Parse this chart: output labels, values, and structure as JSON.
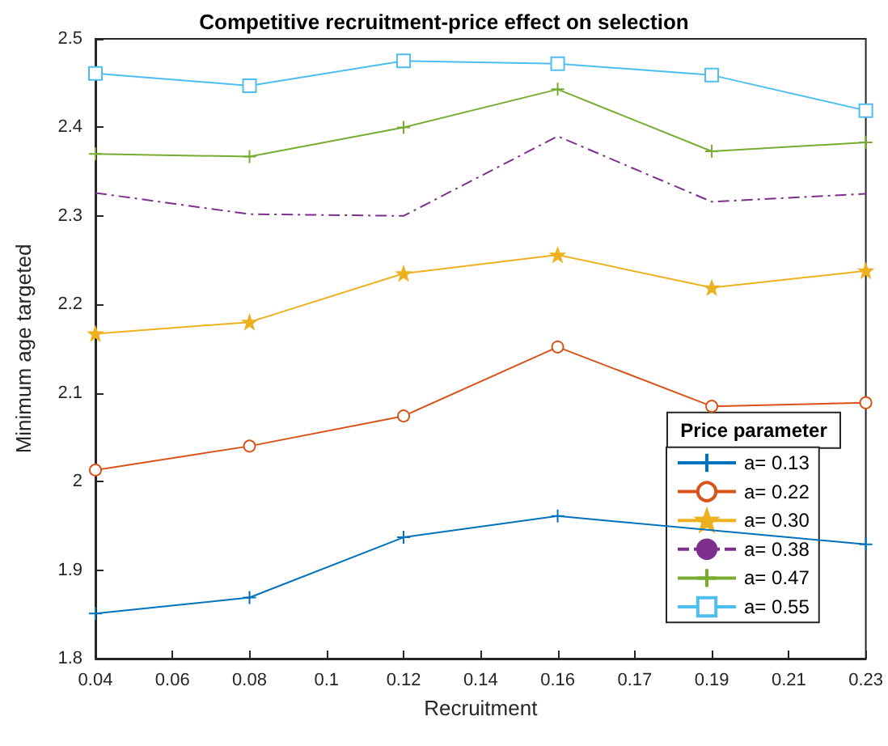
{
  "chart_data": {
    "type": "line",
    "title": "Competitive recruitment-price effect on selection",
    "xlabel": "Recruitment",
    "ylabel": "Minimum age targeted",
    "legend_title": "Price parameter",
    "legend": "bottom right",
    "grid": false,
    "categories": [
      "0.04",
      "0.06",
      "0.08",
      "0.1",
      "0.12",
      "0.14",
      "0.16",
      "0.17",
      "0.19",
      "0.21",
      "0.23"
    ],
    "ylim": [
      1.8,
      2.5
    ],
    "yticks": [
      1.8,
      1.9,
      2,
      2.1,
      2.2,
      2.3,
      2.4,
      2.5
    ],
    "series": [
      {
        "name": "a= 0.13",
        "color": "#0072bd",
        "marker": "cross",
        "line_style": "solid",
        "values": [
          1.851,
          null,
          1.869,
          null,
          1.937,
          null,
          1.961,
          null,
          null,
          null,
          1.929
        ]
      },
      {
        "name": "a= 0.22",
        "color": "#d95319",
        "marker": "circle",
        "line_style": "solid",
        "values": [
          2.013,
          null,
          2.04,
          null,
          2.074,
          null,
          2.152,
          null,
          2.085,
          null,
          2.089
        ]
      },
      {
        "name": "a= 0.30",
        "color": "#edb120",
        "marker": "star",
        "line_style": "solid",
        "values": [
          2.167,
          null,
          2.18,
          null,
          2.235,
          null,
          2.256,
          null,
          2.219,
          null,
          2.238
        ]
      },
      {
        "name": "a= 0.38",
        "color": "#7e2f8e",
        "marker": "none",
        "line_style": "dashed",
        "values": [
          2.326,
          null,
          2.302,
          null,
          2.3,
          null,
          2.39,
          null,
          2.316,
          null,
          2.325
        ]
      },
      {
        "name": "a= 0.47",
        "color": "#77ac30",
        "marker": "cross",
        "line_style": "solid",
        "values": [
          2.37,
          null,
          2.367,
          null,
          2.4,
          null,
          2.443,
          null,
          2.373,
          null,
          2.383
        ]
      },
      {
        "name": "a= 0.55",
        "color": "#4dbeee",
        "marker": "square",
        "line_style": "solid",
        "values": [
          2.461,
          null,
          2.447,
          null,
          2.475,
          null,
          2.472,
          null,
          2.459,
          null,
          2.419
        ]
      }
    ]
  }
}
